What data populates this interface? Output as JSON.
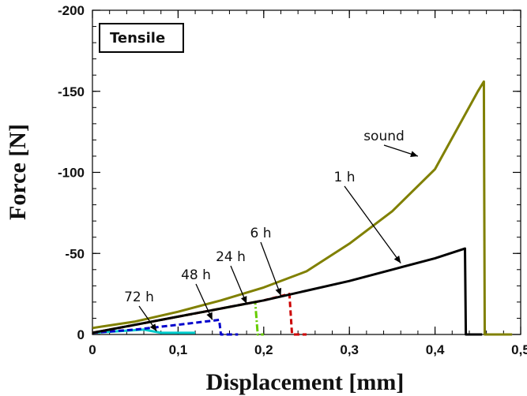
{
  "chart_data": {
    "type": "line",
    "panel_label": "Tensile",
    "xlabel": "Displacement [mm]",
    "ylabel": "Force [N]",
    "xlim": [
      0,
      0.5
    ],
    "ylim": [
      0,
      -200
    ],
    "xticks": [
      0,
      0.1,
      0.2,
      0.3,
      0.4,
      0.5
    ],
    "xtick_labels": [
      "0",
      "0,1",
      "0,2",
      "0,3",
      "0,4",
      "0,5"
    ],
    "yticks": [
      0,
      -50,
      -100,
      -150,
      -200
    ],
    "ytick_labels": [
      "0",
      "-50",
      "-100",
      "-150",
      "-200"
    ],
    "grid": false,
    "series": [
      {
        "name": "sound",
        "color": "#808000",
        "style": "solid",
        "points": [
          [
            0,
            -4
          ],
          [
            0.05,
            -8
          ],
          [
            0.1,
            -14
          ],
          [
            0.15,
            -21
          ],
          [
            0.2,
            -29
          ],
          [
            0.25,
            -39
          ],
          [
            0.3,
            -56
          ],
          [
            0.35,
            -76
          ],
          [
            0.4,
            -102
          ],
          [
            0.45,
            -150
          ],
          [
            0.457,
            -156
          ],
          [
            0.458,
            0
          ],
          [
            0.49,
            0
          ]
        ]
      },
      {
        "name": "1 h",
        "color": "#000000",
        "style": "solid",
        "points": [
          [
            0,
            -1
          ],
          [
            0.05,
            -6
          ],
          [
            0.1,
            -11
          ],
          [
            0.15,
            -16
          ],
          [
            0.2,
            -21
          ],
          [
            0.25,
            -27
          ],
          [
            0.3,
            -33
          ],
          [
            0.35,
            -40
          ],
          [
            0.4,
            -47
          ],
          [
            0.435,
            -53
          ],
          [
            0.436,
            0
          ],
          [
            0.455,
            0
          ]
        ]
      },
      {
        "name": "6 h",
        "color": "#cc0000",
        "style": "dashed",
        "points": [
          [
            0,
            -1
          ],
          [
            0.05,
            -6
          ],
          [
            0.1,
            -11
          ],
          [
            0.15,
            -16
          ],
          [
            0.2,
            -21
          ],
          [
            0.23,
            -25
          ],
          [
            0.233,
            0
          ],
          [
            0.25,
            0
          ]
        ]
      },
      {
        "name": "24 h",
        "color": "#66cc00",
        "style": "dashdot",
        "points": [
          [
            0,
            -1
          ],
          [
            0.05,
            -6
          ],
          [
            0.1,
            -11
          ],
          [
            0.15,
            -16
          ],
          [
            0.19,
            -20
          ],
          [
            0.193,
            0
          ],
          [
            0.2,
            0
          ]
        ]
      },
      {
        "name": "48 h",
        "color": "#0000cc",
        "style": "dashed",
        "points": [
          [
            0,
            -1
          ],
          [
            0.05,
            -3
          ],
          [
            0.1,
            -6
          ],
          [
            0.148,
            -9
          ],
          [
            0.15,
            0
          ],
          [
            0.17,
            0
          ]
        ]
      },
      {
        "name": "72 h",
        "color": "#00cccc",
        "style": "solid",
        "points": [
          [
            0,
            -1
          ],
          [
            0.03,
            -2
          ],
          [
            0.06,
            -3
          ],
          [
            0.08,
            -1
          ],
          [
            0.12,
            -1
          ]
        ]
      }
    ],
    "annotations": [
      {
        "text": "sound",
        "series": "sound",
        "arrow_to": [
          0.38,
          -110
        ]
      },
      {
        "text": "1 h",
        "series": "1 h",
        "arrow_to": [
          0.36,
          -44
        ]
      },
      {
        "text": "6 h",
        "series": "6 h",
        "arrow_to": [
          0.22,
          -24
        ]
      },
      {
        "text": "24 h",
        "series": "24 h",
        "arrow_to": [
          0.18,
          -19
        ]
      },
      {
        "text": "48 h",
        "series": "48 h",
        "arrow_to": [
          0.14,
          -9
        ]
      },
      {
        "text": "72 h",
        "series": "72 h",
        "arrow_to": [
          0.075,
          -2
        ]
      }
    ]
  }
}
